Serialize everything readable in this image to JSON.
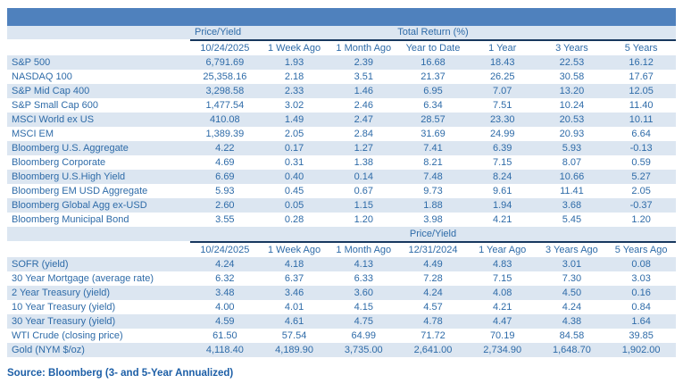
{
  "colors": {
    "accent_bar": "#4f81bd",
    "row_stripe": "#dce6f1",
    "divider_line": "#17375e",
    "text": "#2e6ba8"
  },
  "section1": {
    "group_price_yield": "Price/Yield",
    "group_total_return": "Total Return (%)",
    "columns": [
      "10/24/2025",
      "1 Week Ago",
      "1 Month Ago",
      "Year to Date",
      "1 Year",
      "3 Years",
      "5 Years"
    ],
    "rows": [
      {
        "label": "S&P 500",
        "values": [
          "6,791.69",
          "1.93",
          "2.39",
          "16.68",
          "18.43",
          "22.53",
          "16.12"
        ]
      },
      {
        "label": "NASDAQ 100",
        "values": [
          "25,358.16",
          "2.18",
          "3.51",
          "21.37",
          "26.25",
          "30.58",
          "17.67"
        ]
      },
      {
        "label": "S&P Mid Cap 400",
        "values": [
          "3,298.58",
          "2.33",
          "1.46",
          "6.95",
          "7.07",
          "13.20",
          "12.05"
        ]
      },
      {
        "label": "S&P Small Cap 600",
        "values": [
          "1,477.54",
          "3.02",
          "2.46",
          "6.34",
          "7.51",
          "10.24",
          "11.40"
        ]
      },
      {
        "label": "MSCI World ex US",
        "values": [
          "410.08",
          "1.49",
          "2.47",
          "28.57",
          "23.30",
          "20.53",
          "10.11"
        ]
      },
      {
        "label": "MSCI EM",
        "values": [
          "1,389.39",
          "2.05",
          "2.84",
          "31.69",
          "24.99",
          "20.93",
          "6.64"
        ]
      },
      {
        "label": "Bloomberg U.S. Aggregate",
        "values": [
          "4.22",
          "0.17",
          "1.27",
          "7.41",
          "6.39",
          "5.93",
          "-0.13"
        ]
      },
      {
        "label": "Bloomberg Corporate",
        "values": [
          "4.69",
          "0.31",
          "1.38",
          "8.21",
          "7.15",
          "8.07",
          "0.59"
        ]
      },
      {
        "label": "Bloomberg U.S.High Yield",
        "values": [
          "6.69",
          "0.40",
          "0.14",
          "7.48",
          "8.24",
          "10.66",
          "5.27"
        ]
      },
      {
        "label": "Bloomberg EM USD Aggregate",
        "values": [
          "5.93",
          "0.45",
          "0.67",
          "9.73",
          "9.61",
          "11.41",
          "2.05"
        ]
      },
      {
        "label": "Bloomberg Global Agg ex-USD",
        "values": [
          "2.60",
          "0.05",
          "1.15",
          "1.88",
          "1.94",
          "3.68",
          "-0.37"
        ]
      },
      {
        "label": "Bloomberg Municipal Bond",
        "values": [
          "3.55",
          "0.28",
          "1.20",
          "3.98",
          "4.21",
          "5.45",
          "1.20"
        ]
      }
    ]
  },
  "section2": {
    "group_price_yield": "Price/Yield",
    "columns": [
      "10/24/2025",
      "1 Week Ago",
      "1 Month Ago",
      "12/31/2024",
      "1 Year Ago",
      "3 Years Ago",
      "5 Years Ago"
    ],
    "rows": [
      {
        "label": "SOFR (yield)",
        "values": [
          "4.24",
          "4.18",
          "4.13",
          "4.49",
          "4.83",
          "3.01",
          "0.08"
        ]
      },
      {
        "label": "30 Year Mortgage (average rate)",
        "values": [
          "6.32",
          "6.37",
          "6.33",
          "7.28",
          "7.15",
          "7.30",
          "3.03"
        ]
      },
      {
        "label": "2 Year Treasury (yield)",
        "values": [
          "3.48",
          "3.46",
          "3.60",
          "4.24",
          "4.08",
          "4.50",
          "0.16"
        ]
      },
      {
        "label": "10 Year Treasury (yield)",
        "values": [
          "4.00",
          "4.01",
          "4.15",
          "4.57",
          "4.21",
          "4.24",
          "0.84"
        ]
      },
      {
        "label": "30 Year Treasury (yield)",
        "values": [
          "4.59",
          "4.61",
          "4.75",
          "4.78",
          "4.47",
          "4.38",
          "1.64"
        ]
      },
      {
        "label": "WTI Crude (closing price)",
        "values": [
          "61.50",
          "57.54",
          "64.99",
          "71.72",
          "70.19",
          "84.58",
          "39.85"
        ]
      },
      {
        "label": "Gold (NYM $/oz)",
        "values": [
          "4,118.40",
          "4,189.90",
          "3,735.00",
          "2,641.00",
          "2,734.90",
          "1,648.70",
          "1,902.00"
        ]
      }
    ]
  },
  "footer": {
    "source_note": "Source: Bloomberg (3- and 5-Year Annualized)"
  }
}
